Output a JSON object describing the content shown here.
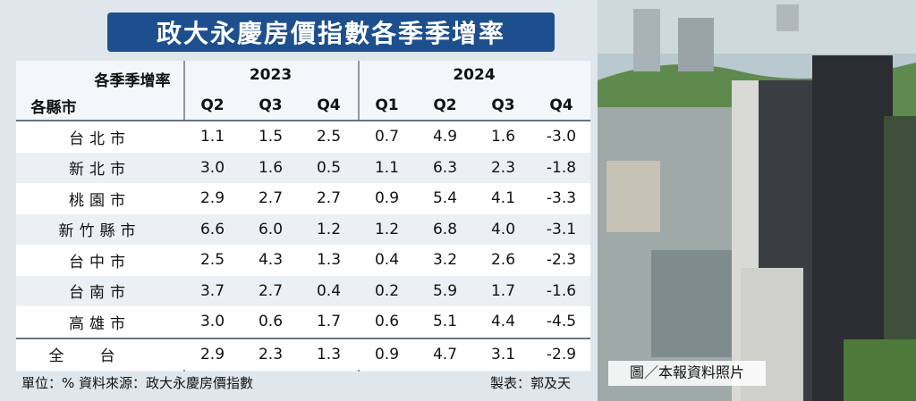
{
  "title": "政大永慶房價指數各季季增率",
  "table": {
    "corner_top": "各季季增率",
    "corner_bottom": "各縣市",
    "years": [
      {
        "label": "2023",
        "quarters": [
          "Q2",
          "Q3",
          "Q4"
        ]
      },
      {
        "label": "2024",
        "quarters": [
          "Q1",
          "Q2",
          "Q3",
          "Q4"
        ]
      }
    ],
    "rows": [
      {
        "name": "台北市",
        "values": [
          "1.1",
          "1.5",
          "2.5",
          "0.7",
          "4.9",
          "1.6",
          "-3.0"
        ]
      },
      {
        "name": "新北市",
        "values": [
          "3.0",
          "1.6",
          "0.5",
          "1.1",
          "6.3",
          "2.3",
          "-1.8"
        ]
      },
      {
        "name": "桃園市",
        "values": [
          "2.9",
          "2.7",
          "2.7",
          "0.9",
          "5.4",
          "4.1",
          "-3.3"
        ]
      },
      {
        "name": "新竹縣市",
        "values": [
          "6.6",
          "6.0",
          "1.2",
          "1.2",
          "6.8",
          "4.0",
          "-3.1"
        ]
      },
      {
        "name": "台中市",
        "values": [
          "2.5",
          "4.3",
          "1.3",
          "0.4",
          "3.2",
          "2.6",
          "-2.3"
        ]
      },
      {
        "name": "台南市",
        "values": [
          "3.7",
          "2.7",
          "0.4",
          "0.2",
          "5.9",
          "1.7",
          "-1.6"
        ]
      },
      {
        "name": "高雄市",
        "values": [
          "3.0",
          "0.6",
          "1.7",
          "0.6",
          "5.1",
          "4.4",
          "-4.5"
        ]
      }
    ],
    "total": {
      "name": "全台",
      "values": [
        "2.9",
        "2.3",
        "1.3",
        "0.9",
        "4.7",
        "3.1",
        "-2.9"
      ]
    }
  },
  "footer": {
    "source": "單位：%  資料來源：政大永慶房價指數",
    "credit": "製表：郭及天"
  },
  "photo_caption": "圖／本報資料照片"
}
